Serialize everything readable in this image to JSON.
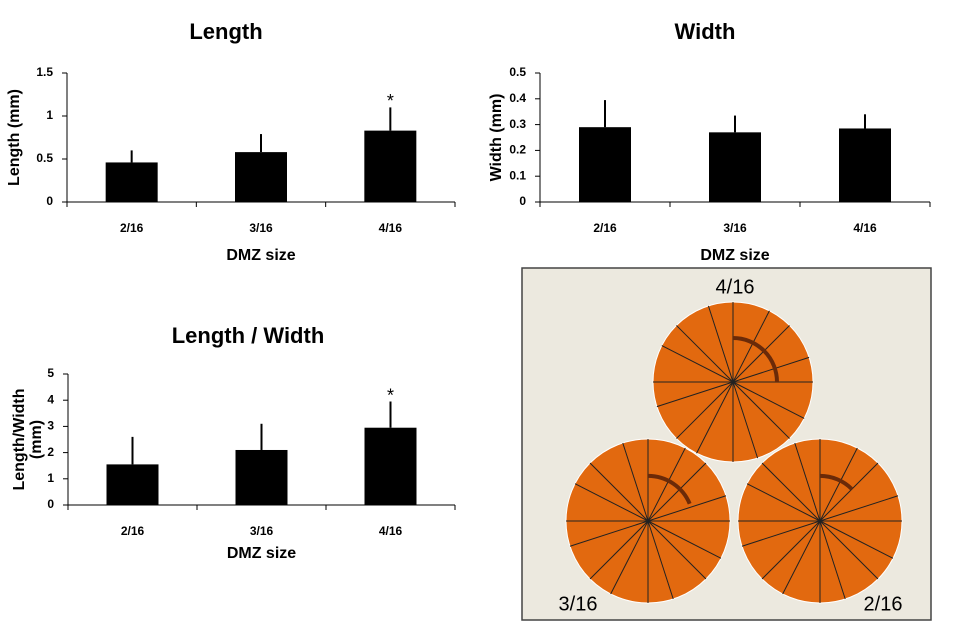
{
  "chart_data": [
    {
      "type": "bar",
      "title": "Length",
      "xlabel": "DMZ size",
      "ylabel": "Length (mm)",
      "categories": [
        "2/16",
        "3/16",
        "4/16"
      ],
      "values": [
        0.46,
        0.58,
        0.83
      ],
      "errors": [
        0.14,
        0.21,
        0.27
      ],
      "color": "#000000",
      "ylim": [
        0,
        1.5
      ],
      "yticks": [
        0,
        0.5,
        1,
        1.5
      ],
      "annotations": [
        {
          "text": "*",
          "x": "4/16"
        }
      ]
    },
    {
      "type": "bar",
      "title": "Width",
      "xlabel": "DMZ size",
      "ylabel": "Width (mm)",
      "categories": [
        "2/16",
        "3/16",
        "4/16"
      ],
      "values": [
        0.29,
        0.27,
        0.285
      ],
      "errors": [
        0.105,
        0.065,
        0.055
      ],
      "color": "#000000",
      "ylim": [
        0,
        0.5
      ],
      "yticks": [
        0,
        0.1,
        0.2,
        0.3,
        0.4,
        0.5
      ]
    },
    {
      "type": "bar",
      "title": "Length / Width",
      "xlabel": "DMZ size",
      "ylabel": [
        "Length/Width",
        "(mm)"
      ],
      "categories": [
        "2/16",
        "3/16",
        "4/16"
      ],
      "values": [
        1.55,
        2.1,
        2.95
      ],
      "errors": [
        1.05,
        1.0,
        1.0
      ],
      "color": "#000000",
      "ylim": [
        0,
        5
      ],
      "yticks": [
        0,
        1,
        2,
        3,
        4,
        5
      ],
      "annotations": [
        {
          "text": "*",
          "x": "4/16"
        }
      ]
    }
  ],
  "diagram": {
    "labels": [
      "4/16",
      "3/16",
      "2/16"
    ]
  }
}
